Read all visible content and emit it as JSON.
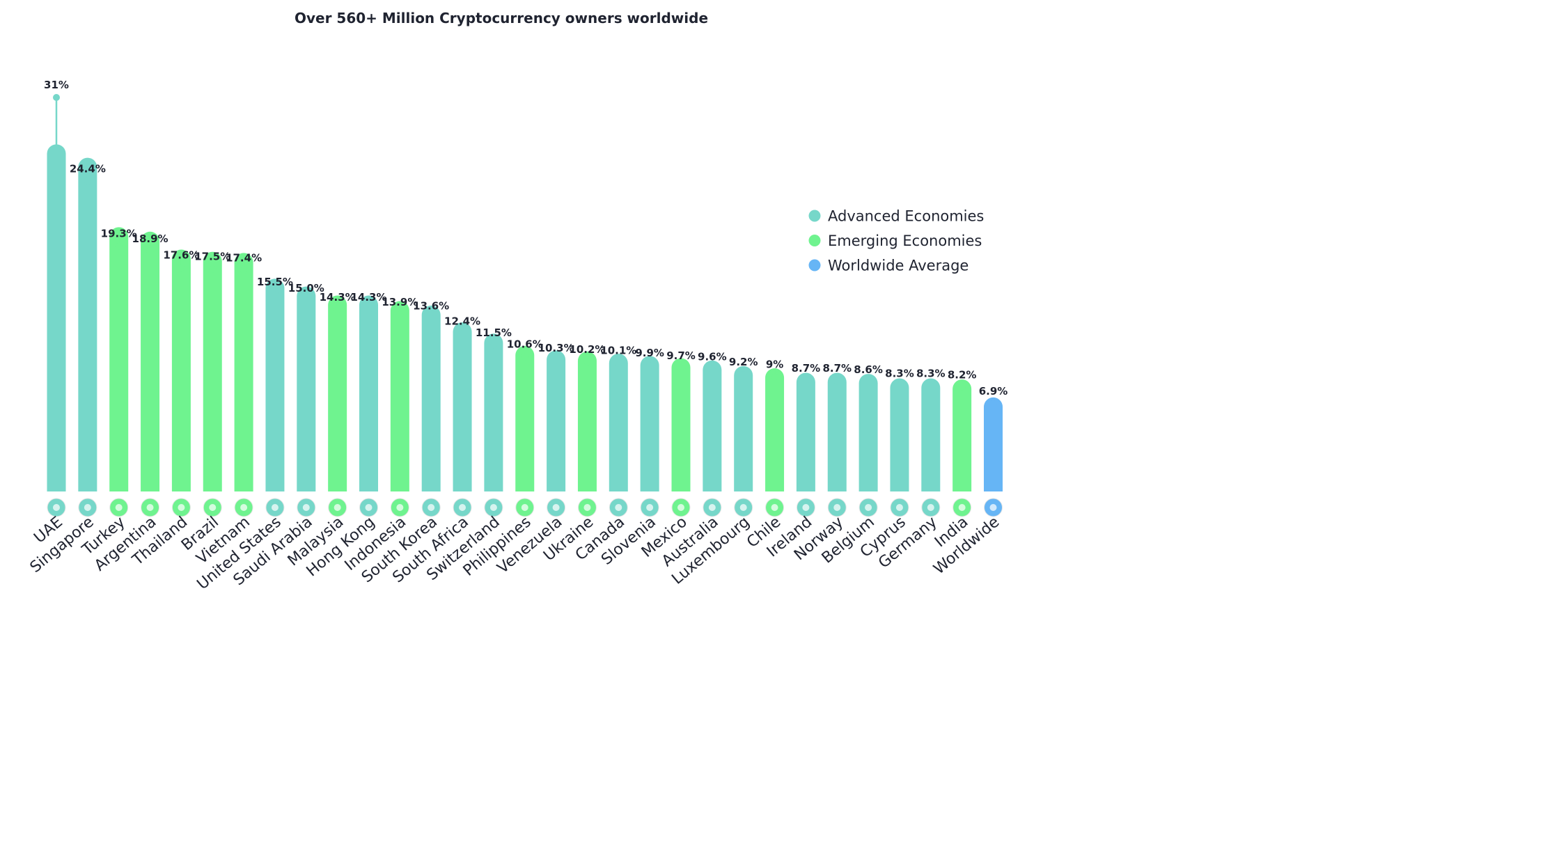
{
  "chart_data": {
    "type": "bar",
    "title": "Over 560+ Million Cryptocurrency owners worldwide",
    "xlabel": "",
    "ylabel": "",
    "ylim": [
      0,
      35
    ],
    "grid": false,
    "legend_position": "right",
    "colors": {
      "Advanced Economies": "#76d7c9",
      "Emerging Economies": "#6ff38f",
      "Worldwide Average": "#66b5f5"
    },
    "legend": [
      {
        "name": "Advanced Economies",
        "color": "#76d7c9"
      },
      {
        "name": "Emerging Economies",
        "color": "#6ff38f"
      },
      {
        "name": "Worldwide Average",
        "color": "#66b5f5"
      }
    ],
    "categories": [
      "UAE",
      "Singapore",
      "Turkey",
      "Argentina",
      "Thailand",
      "Brazil",
      "Vietnam",
      "United States",
      "Saudi Arabia",
      "Malaysia",
      "Hong Kong",
      "Indonesia",
      "South Korea",
      "South Africa",
      "Switzerland",
      "Philippines",
      "Venezuela",
      "Ukraine",
      "Canada",
      "Slovenia",
      "Mexico",
      "Australia",
      "Luxembourg",
      "Chile",
      "Ireland",
      "Norway",
      "Belgium",
      "Cyprus",
      "Germany",
      "India",
      "Worldwide"
    ],
    "value_labels": [
      "31%",
      "24.4%",
      "19.3%",
      "18.9%",
      "17.6%",
      "17.5%",
      "17.4%",
      "15.5%",
      "15.0%",
      "14.3%",
      "14.3%",
      "13.9%",
      "13.6%",
      "12.4%",
      "11.5%",
      "10.6%",
      "10.3%",
      "10.2%",
      "10.1%",
      "9.9%",
      "9.7%",
      "9.6%",
      "9.2%",
      "9%",
      "8.7%",
      "8.7%",
      "8.6%",
      "8.3%",
      "8.3%",
      "8.2%",
      "6.9%"
    ],
    "values": [
      31,
      24.4,
      19.3,
      18.9,
      17.6,
      17.5,
      17.4,
      15.5,
      15.0,
      14.3,
      14.3,
      13.9,
      13.6,
      12.4,
      11.5,
      10.6,
      10.3,
      10.2,
      10.1,
      9.9,
      9.7,
      9.6,
      9.2,
      9,
      8.7,
      8.7,
      8.6,
      8.3,
      8.3,
      8.2,
      6.9
    ],
    "groups": [
      "Advanced Economies",
      "Advanced Economies",
      "Emerging Economies",
      "Emerging Economies",
      "Emerging Economies",
      "Emerging Economies",
      "Emerging Economies",
      "Advanced Economies",
      "Advanced Economies",
      "Emerging Economies",
      "Advanced Economies",
      "Emerging Economies",
      "Advanced Economies",
      "Advanced Economies",
      "Advanced Economies",
      "Emerging Economies",
      "Advanced Economies",
      "Emerging Economies",
      "Advanced Economies",
      "Advanced Economies",
      "Emerging Economies",
      "Advanced Economies",
      "Advanced Economies",
      "Emerging Economies",
      "Advanced Economies",
      "Advanced Economies",
      "Advanced Economies",
      "Advanced Economies",
      "Advanced Economies",
      "Emerging Economies",
      "Worldwide Average"
    ],
    "bar_heights": [
      31.0,
      29.8,
      23.6,
      23.2,
      21.6,
      21.4,
      21.3,
      19.0,
      18.3,
      17.5,
      17.5,
      17.0,
      16.6,
      15.1,
      14.1,
      13.0,
      12.6,
      12.5,
      12.3,
      12.1,
      11.9,
      11.7,
      11.2,
      11.0,
      10.6,
      10.6,
      10.5,
      10.1,
      10.1,
      10.0,
      8.4
    ]
  },
  "flags": [
    "uae-flag-icon",
    "singapore-flag-icon",
    "turkey-flag-icon",
    "argentina-flag-icon",
    "thailand-flag-icon",
    "brazil-flag-icon",
    "vietnam-flag-icon",
    "united-states-flag-icon",
    "saudi-arabia-flag-icon",
    "malaysia-flag-icon",
    "hong-kong-flag-icon",
    "indonesia-flag-icon",
    "south-korea-flag-icon",
    "south-africa-flag-icon",
    "switzerland-flag-icon",
    "philippines-flag-icon",
    "venezuela-flag-icon",
    "ukraine-flag-icon",
    "canada-flag-icon",
    "slovenia-flag-icon",
    "mexico-flag-icon",
    "australia-flag-icon",
    "luxembourg-flag-icon",
    "chile-flag-icon",
    "ireland-flag-icon",
    "norway-flag-icon",
    "belgium-flag-icon",
    "cyprus-flag-icon",
    "germany-flag-icon",
    "india-flag-icon",
    "globe-icon"
  ]
}
